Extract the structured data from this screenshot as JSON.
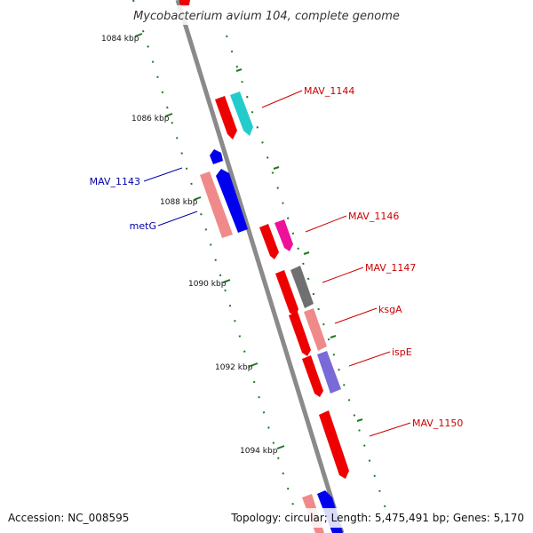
{
  "title": "Mycobacterium avium 104, complete genome",
  "footer": {
    "accession": "Accession: NC_008595",
    "topology": "Topology: circular; Length: 5,475,491 bp; Genes: 5,170"
  },
  "colors": {
    "backbone": "#7f7f7f",
    "ticks": "#1f7a1f",
    "label_forward": "#cc0000",
    "label_reverse": "#0000aa"
  },
  "ticks": [
    "1084 kbp",
    "1086 kbp",
    "1088 kbp",
    "1090 kbp",
    "1092 kbp",
    "1094 kbp"
  ],
  "labeled_genes": [
    {
      "label": "MAV_1144",
      "strand": "forward"
    },
    {
      "label": "MAV_1143",
      "strand": "reverse"
    },
    {
      "label": "metG",
      "strand": "reverse"
    },
    {
      "label": "MAV_1146",
      "strand": "forward"
    },
    {
      "label": "MAV_1147",
      "strand": "forward"
    },
    {
      "label": "ksgA",
      "strand": "forward"
    },
    {
      "label": "ispE",
      "strand": "forward"
    },
    {
      "label": "MAV_1150",
      "strand": "forward"
    }
  ]
}
